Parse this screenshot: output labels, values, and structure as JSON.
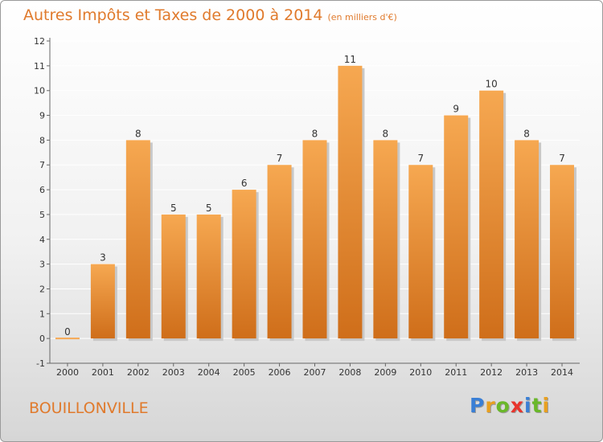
{
  "title": "Autres Impôts et Taxes de 2000 à 2014",
  "subtitle": "(en milliers d'€)",
  "commune": "BOUILLONVILLE",
  "logo": {
    "letters": [
      "P",
      "r",
      "o",
      "x",
      "i",
      "t",
      "i"
    ],
    "colors": [
      "#3a7fd5",
      "#e8a020",
      "#6ab82a",
      "#e8342c",
      "#3a7fd5",
      "#6ab82a",
      "#e8a020"
    ]
  },
  "colors": {
    "bar_top": "#f6a851",
    "bar_bottom": "#cf6e1a",
    "bar_shadow": "#c8c8c8",
    "grid": "#ffffff",
    "axis": "#666666"
  },
  "chart_data": {
    "type": "bar",
    "categories": [
      "2000",
      "2001",
      "2002",
      "2003",
      "2004",
      "2005",
      "2006",
      "2007",
      "2008",
      "2009",
      "2010",
      "2011",
      "2012",
      "2013",
      "2014"
    ],
    "values": [
      0,
      3,
      8,
      5,
      5,
      6,
      7,
      8,
      11,
      8,
      7,
      9,
      10,
      8,
      7
    ],
    "data_labels": [
      "0",
      "3",
      "8",
      "5",
      "5",
      "6",
      "7",
      "8",
      "11",
      "8",
      "7",
      "9",
      "10",
      "8",
      "7"
    ],
    "y_ticks": [
      "-1",
      "0",
      "1",
      "2",
      "3",
      "4",
      "5",
      "6",
      "7",
      "8",
      "9",
      "10",
      "11",
      "12"
    ],
    "ylim": [
      -1,
      12
    ],
    "grid": true,
    "title": "Autres Impôts et Taxes de 2000 à 2014",
    "xlabel": "",
    "ylabel": ""
  }
}
